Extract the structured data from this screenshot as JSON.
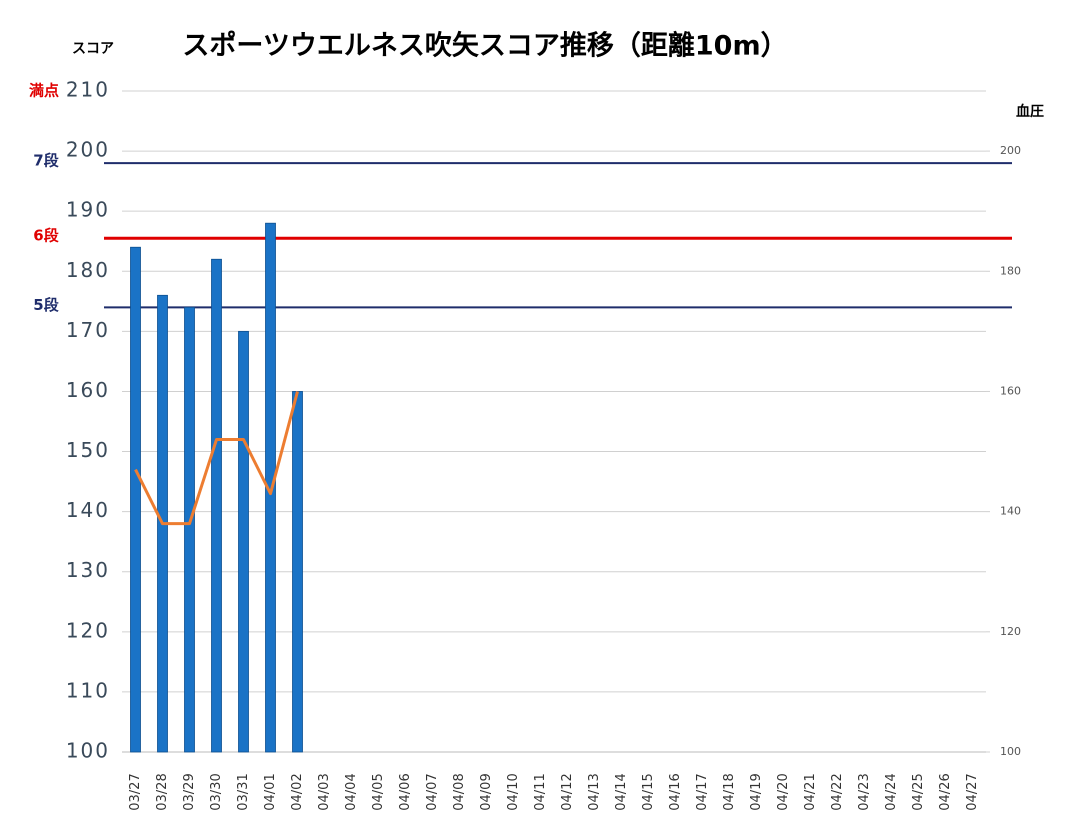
{
  "chart_data": {
    "type": "bar",
    "title": "スポーツウエルネス吹矢スコア推移（距離10m）",
    "y_label": "スコア",
    "y2_label": "血圧",
    "categories": [
      "03/27",
      "03/28",
      "03/29",
      "03/30",
      "03/31",
      "04/01",
      "04/02",
      "04/03",
      "04/04",
      "04/05",
      "04/06",
      "04/07",
      "04/08",
      "04/09",
      "04/10",
      "04/11",
      "04/12",
      "04/13",
      "04/14",
      "04/15",
      "04/16",
      "04/17",
      "04/18",
      "04/19",
      "04/20",
      "04/21",
      "04/22",
      "04/23",
      "04/24",
      "04/25",
      "04/26",
      "04/27"
    ],
    "series": [
      {
        "type": "bar",
        "color": "#1a73c6",
        "values": [
          184,
          176,
          174,
          182,
          170,
          188,
          160,
          null,
          null,
          null,
          null,
          null,
          null,
          null,
          null,
          null,
          null,
          null,
          null,
          null,
          null,
          null,
          null,
          null,
          null,
          null,
          null,
          null,
          null,
          null,
          null,
          null
        ]
      },
      {
        "type": "line",
        "axis": "y2",
        "color": "#ed7d31",
        "values": [
          147,
          138,
          138,
          152,
          152,
          143,
          160,
          null,
          null,
          null,
          null,
          null,
          null,
          null,
          null,
          null,
          null,
          null,
          null,
          null,
          null,
          null,
          null,
          null,
          null,
          null,
          null,
          null,
          null,
          null,
          null,
          null
        ]
      }
    ],
    "ylim": [
      100,
      210
    ],
    "yticks": [
      100,
      110,
      120,
      130,
      140,
      150,
      160,
      170,
      180,
      190,
      200,
      210
    ],
    "y2lim": [
      100,
      210
    ],
    "y2ticks": [
      100,
      120,
      140,
      160,
      180,
      200
    ],
    "grid": true,
    "annotations": [
      {
        "label": "満点",
        "value": 210,
        "color": "#e00000",
        "line": false
      },
      {
        "label": "7段",
        "value": 198,
        "color": "#1f2d6b",
        "line": true
      },
      {
        "label": "6段",
        "value": 185.5,
        "color": "#e00000",
        "line": true
      },
      {
        "label": "5段",
        "value": 174,
        "color": "#1f2d6b",
        "line": true
      }
    ]
  }
}
